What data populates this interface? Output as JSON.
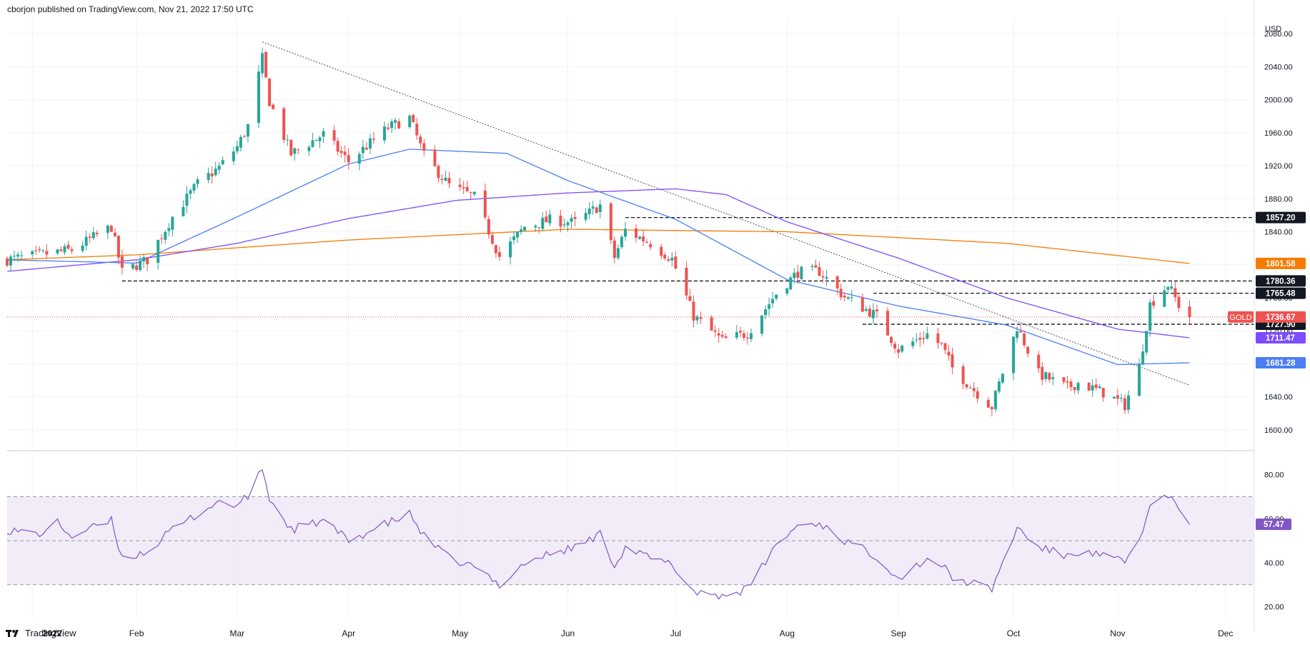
{
  "publisher": "cborjon published on TradingView.com, Nov 21, 2022 17:50 UTC",
  "brand": {
    "label": "TradingView",
    "icon": "tradingview-logo-icon"
  },
  "colors": {
    "up": "#26a69a",
    "down": "#ef5350",
    "sma50": "#4a7ef5",
    "sma100": "#7c4dff",
    "sma200": "#f57c00",
    "rsi": "#7e57c2",
    "rsiBand": "#ede7f6",
    "priceLine": "#ef5350"
  },
  "chart_data": [
    {
      "type": "candlestick",
      "symbol": "GOLD",
      "currency": "USD",
      "ylim": [
        1580,
        2100
      ],
      "y_ticks": [
        "1600.00",
        "1640.00",
        "1680.00",
        "1720.00",
        "1760.00",
        "1800.00",
        "1840.00",
        "1880.00",
        "1920.00",
        "1960.00",
        "2000.00",
        "2040.00",
        "2080.00"
      ],
      "x_ticks": [
        "2022",
        "Feb",
        "Mar",
        "Apr",
        "May",
        "Jun",
        "Jul",
        "Aug",
        "Sep",
        "Oct",
        "Nov",
        "Dec"
      ],
      "x_tick_dates": [
        "2022-01-03",
        "2022-02-01",
        "2022-03-01",
        "2022-04-01",
        "2022-05-02",
        "2022-06-01",
        "2022-07-01",
        "2022-08-01",
        "2022-09-01",
        "2022-10-03",
        "2022-11-01",
        "2022-12-01"
      ],
      "date_range": [
        "2021-12-27",
        "2022-12-09"
      ],
      "ohlc_anchors": [
        [
          "2021-12-27",
          1806
        ],
        [
          "2022-01-05",
          1812
        ],
        [
          "2022-01-14",
          1818
        ],
        [
          "2022-01-25",
          1846
        ],
        [
          "2022-01-28",
          1791
        ],
        [
          "2022-02-04",
          1806
        ],
        [
          "2022-02-11",
          1858
        ],
        [
          "2022-02-18",
          1898
        ],
        [
          "2022-02-24",
          1918
        ],
        [
          "2022-03-01",
          1943
        ],
        [
          "2022-03-04",
          1968
        ],
        [
          "2022-03-08",
          2050
        ],
        [
          "2022-03-10",
          1998
        ],
        [
          "2022-03-16",
          1934
        ],
        [
          "2022-03-25",
          1958
        ],
        [
          "2022-04-01",
          1925
        ],
        [
          "2022-04-12",
          1966
        ],
        [
          "2022-04-18",
          1978
        ],
        [
          "2022-04-22",
          1932
        ],
        [
          "2022-04-29",
          1896
        ],
        [
          "2022-05-06",
          1882
        ],
        [
          "2022-05-13",
          1810
        ],
        [
          "2022-05-20",
          1846
        ],
        [
          "2022-05-27",
          1854
        ],
        [
          "2022-06-03",
          1851
        ],
        [
          "2022-06-10",
          1872
        ],
        [
          "2022-06-14",
          1809
        ],
        [
          "2022-06-17",
          1842
        ],
        [
          "2022-06-24",
          1826
        ],
        [
          "2022-06-30",
          1807
        ],
        [
          "2022-07-06",
          1738
        ],
        [
          "2022-07-14",
          1708
        ],
        [
          "2022-07-21",
          1717
        ],
        [
          "2022-07-29",
          1765
        ],
        [
          "2022-08-04",
          1791
        ],
        [
          "2022-08-10",
          1792
        ],
        [
          "2022-08-17",
          1761
        ],
        [
          "2022-08-26",
          1738
        ],
        [
          "2022-09-01",
          1697
        ],
        [
          "2022-09-09",
          1716
        ],
        [
          "2022-09-13",
          1702
        ],
        [
          "2022-09-16",
          1675
        ],
        [
          "2022-09-23",
          1644
        ],
        [
          "2022-09-27",
          1628
        ],
        [
          "2022-10-04",
          1725
        ],
        [
          "2022-10-10",
          1668
        ],
        [
          "2022-10-18",
          1651
        ],
        [
          "2022-10-21",
          1657
        ],
        [
          "2022-10-28",
          1645
        ],
        [
          "2022-11-03",
          1630
        ],
        [
          "2022-11-07",
          1676
        ],
        [
          "2022-11-10",
          1752
        ],
        [
          "2022-11-15",
          1776
        ],
        [
          "2022-11-18",
          1751
        ],
        [
          "2022-11-21",
          1736.67
        ]
      ],
      "series": [
        {
          "name": "GOLD",
          "last": "1736.67",
          "badge_color": "#ef5350"
        },
        {
          "name": "",
          "last": "1801.58",
          "badge_color": "#f57c00",
          "values": [
            [
              "2021-12-27",
              1806
            ],
            [
              "2022-02-01",
              1812
            ],
            [
              "2022-04-01",
              1830
            ],
            [
              "2022-06-01",
              1843
            ],
            [
              "2022-08-01",
              1840
            ],
            [
              "2022-10-01",
              1826
            ],
            [
              "2022-11-21",
              1801.58
            ]
          ]
        },
        {
          "name": "",
          "last": "1711.47",
          "badge_color": "#7c4dff",
          "values": [
            [
              "2021-12-27",
              1792
            ],
            [
              "2022-02-01",
              1806
            ],
            [
              "2022-03-01",
              1826
            ],
            [
              "2022-04-01",
              1856
            ],
            [
              "2022-05-01",
              1878
            ],
            [
              "2022-06-01",
              1887
            ],
            [
              "2022-07-01",
              1892
            ],
            [
              "2022-07-15",
              1885
            ],
            [
              "2022-08-01",
              1852
            ],
            [
              "2022-09-01",
              1808
            ],
            [
              "2022-10-01",
              1760
            ],
            [
              "2022-11-01",
              1722
            ],
            [
              "2022-11-21",
              1711.47
            ]
          ]
        },
        {
          "name": "",
          "last": "1681.28",
          "badge_color": "#4a7ef5",
          "values": [
            [
              "2021-12-27",
              1806
            ],
            [
              "2022-02-01",
              1802
            ],
            [
              "2022-03-01",
              1858
            ],
            [
              "2022-04-01",
              1922
            ],
            [
              "2022-04-18",
              1940
            ],
            [
              "2022-05-15",
              1935
            ],
            [
              "2022-06-01",
              1902
            ],
            [
              "2022-07-01",
              1855
            ],
            [
              "2022-08-01",
              1782
            ],
            [
              "2022-09-01",
              1750
            ],
            [
              "2022-10-01",
              1727
            ],
            [
              "2022-11-01",
              1679
            ],
            [
              "2022-11-21",
              1681.28
            ]
          ]
        }
      ],
      "levels": [
        {
          "value": "1857.20",
          "from": "2022-06-17"
        },
        {
          "value": "1780.36",
          "from": "2022-01-28"
        },
        {
          "value": "1765.48",
          "from": "2022-08-25"
        },
        {
          "value": "1727.90",
          "from": "2022-08-22"
        }
      ],
      "trendline": [
        [
          "2022-03-08",
          2070
        ],
        [
          "2022-11-21",
          1654
        ]
      ]
    },
    {
      "type": "line",
      "indicator": "RSI",
      "ylim": [
        15,
        89
      ],
      "y_ticks": [
        "20.00",
        "40.00",
        "60.00",
        "80.00"
      ],
      "band": [
        30,
        70
      ],
      "midline": 50,
      "last": "57.47",
      "values": [
        [
          "2021-12-27",
          55
        ],
        [
          "2022-01-05",
          53
        ],
        [
          "2022-01-10",
          58
        ],
        [
          "2022-01-14",
          52
        ],
        [
          "2022-01-20",
          56
        ],
        [
          "2022-01-25",
          59
        ],
        [
          "2022-01-28",
          42
        ],
        [
          "2022-02-04",
          45
        ],
        [
          "2022-02-11",
          55
        ],
        [
          "2022-02-18",
          62
        ],
        [
          "2022-02-24",
          68
        ],
        [
          "2022-03-01",
          66
        ],
        [
          "2022-03-04",
          70
        ],
        [
          "2022-03-08",
          83
        ],
        [
          "2022-03-10",
          69
        ],
        [
          "2022-03-16",
          55
        ],
        [
          "2022-03-25",
          59
        ],
        [
          "2022-04-01",
          50
        ],
        [
          "2022-04-12",
          58
        ],
        [
          "2022-04-18",
          62
        ],
        [
          "2022-04-22",
          52
        ],
        [
          "2022-04-29",
          42
        ],
        [
          "2022-05-06",
          38
        ],
        [
          "2022-05-13",
          30
        ],
        [
          "2022-05-20",
          40
        ],
        [
          "2022-05-27",
          44
        ],
        [
          "2022-06-03",
          47
        ],
        [
          "2022-06-10",
          53
        ],
        [
          "2022-06-14",
          39
        ],
        [
          "2022-06-17",
          47
        ],
        [
          "2022-06-24",
          42
        ],
        [
          "2022-06-30",
          39
        ],
        [
          "2022-07-06",
          27
        ],
        [
          "2022-07-14",
          25
        ],
        [
          "2022-07-21",
          28
        ],
        [
          "2022-07-29",
          48
        ],
        [
          "2022-08-04",
          57
        ],
        [
          "2022-08-10",
          58
        ],
        [
          "2022-08-17",
          50
        ],
        [
          "2022-08-26",
          43
        ],
        [
          "2022-09-01",
          33
        ],
        [
          "2022-09-09",
          42
        ],
        [
          "2022-09-13",
          39
        ],
        [
          "2022-09-16",
          33
        ],
        [
          "2022-09-23",
          30
        ],
        [
          "2022-09-27",
          28
        ],
        [
          "2022-10-04",
          56
        ],
        [
          "2022-10-10",
          47
        ],
        [
          "2022-10-18",
          43
        ],
        [
          "2022-10-21",
          45
        ],
        [
          "2022-10-28",
          43
        ],
        [
          "2022-11-03",
          40
        ],
        [
          "2022-11-07",
          51
        ],
        [
          "2022-11-10",
          65
        ],
        [
          "2022-11-15",
          71
        ],
        [
          "2022-11-18",
          64
        ],
        [
          "2022-11-21",
          57.47
        ]
      ]
    }
  ]
}
